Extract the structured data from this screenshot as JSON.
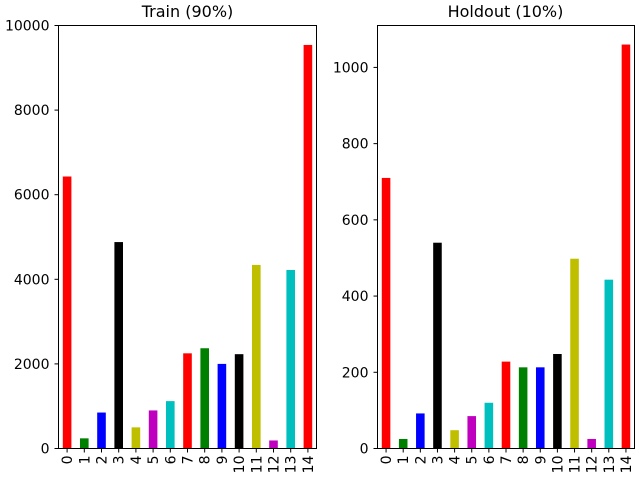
{
  "chart_data": [
    {
      "type": "bar",
      "title": "Train (90%)",
      "xlabel": "",
      "ylabel": "",
      "categories": [
        "0",
        "1",
        "2",
        "3",
        "4",
        "5",
        "6",
        "7",
        "8",
        "9",
        "10",
        "11",
        "12",
        "13",
        "14"
      ],
      "values": [
        6430,
        240,
        850,
        4880,
        500,
        900,
        1120,
        2250,
        2370,
        2000,
        2230,
        4340,
        190,
        4220,
        9540
      ],
      "colors": [
        "#ff0000",
        "#008000",
        "#0000ff",
        "#000000",
        "#bfbf00",
        "#bf00bf",
        "#00bfbf",
        "#ff0000",
        "#008000",
        "#0000ff",
        "#000000",
        "#bfbf00",
        "#bf00bf",
        "#00bfbf",
        "#ff0000"
      ],
      "ylim": [
        0,
        10000
      ],
      "yticks": [
        0,
        2000,
        4000,
        6000,
        8000,
        10000
      ],
      "ytick_labels": [
        "0",
        "2000",
        "4000",
        "6000",
        "8000",
        "10000"
      ],
      "grid": false,
      "legend": "none"
    },
    {
      "type": "bar",
      "title": "Holdout (10%)",
      "xlabel": "",
      "ylabel": "",
      "categories": [
        "0",
        "1",
        "2",
        "3",
        "4",
        "5",
        "6",
        "7",
        "8",
        "9",
        "10",
        "11",
        "12",
        "13",
        "14"
      ],
      "values": [
        710,
        25,
        92,
        540,
        48,
        85,
        120,
        228,
        213,
        213,
        248,
        498,
        25,
        443,
        1060
      ],
      "colors": [
        "#ff0000",
        "#008000",
        "#0000ff",
        "#000000",
        "#bfbf00",
        "#bf00bf",
        "#00bfbf",
        "#ff0000",
        "#008000",
        "#0000ff",
        "#000000",
        "#bfbf00",
        "#bf00bf",
        "#00bfbf",
        "#ff0000"
      ],
      "ylim": [
        0,
        1110
      ],
      "yticks": [
        0,
        200,
        400,
        600,
        800,
        1000
      ],
      "ytick_labels": [
        "0",
        "200",
        "400",
        "600",
        "800",
        "1000"
      ],
      "grid": false,
      "legend": "none"
    }
  ]
}
